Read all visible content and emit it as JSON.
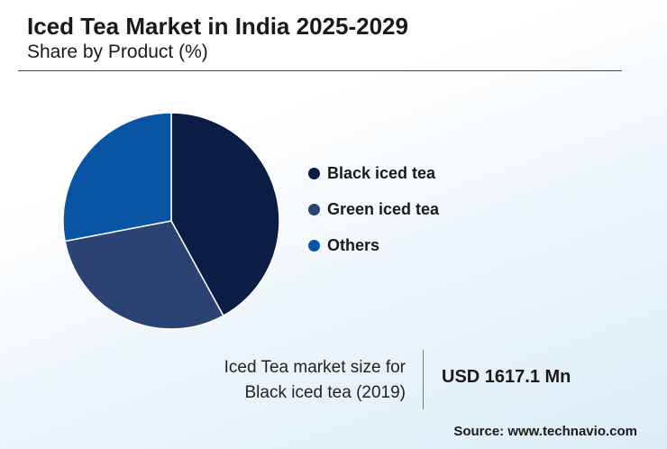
{
  "header": {
    "title": "Iced Tea Market in India 2025-2029",
    "subtitle": "Share by Product (%)"
  },
  "chart_data": {
    "type": "pie",
    "categories": [
      "Black iced tea",
      "Green iced tea",
      "Others"
    ],
    "values": [
      42,
      30,
      28
    ],
    "colors": [
      "#0b1d45",
      "#2b4373",
      "#0a55a3"
    ],
    "legend_position": "right"
  },
  "stat": {
    "label_line1": "Iced Tea market size for",
    "label_line2": "Black iced tea (2019)",
    "value": "USD 1617.1 Mn"
  },
  "footer": {
    "source": "Source: www.technavio.com"
  }
}
